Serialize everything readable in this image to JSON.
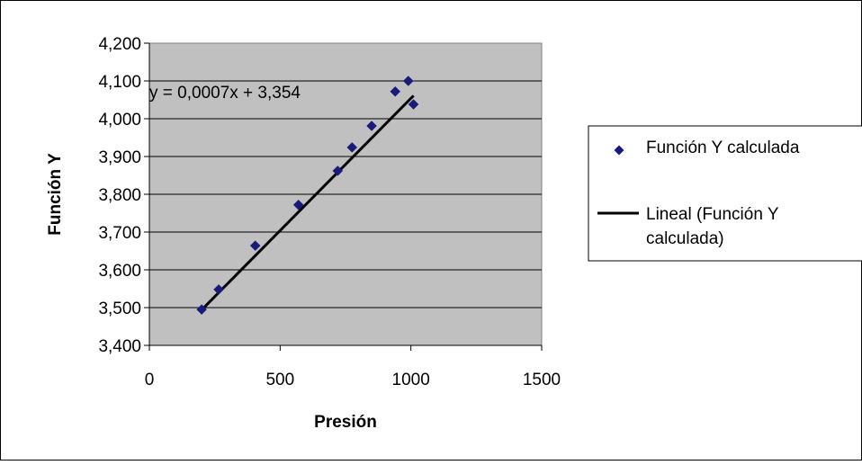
{
  "chart_data": {
    "type": "scatter",
    "xlabel": "Presión",
    "ylabel": "Función Y",
    "xlim": [
      0,
      1500
    ],
    "ylim": [
      3.4,
      4.2
    ],
    "x_ticks": [
      "0",
      "500",
      "1000",
      "1500"
    ],
    "y_ticks": [
      "3,400",
      "3,500",
      "3,600",
      "3,700",
      "3,800",
      "3,900",
      "4,000",
      "4,100",
      "4,200"
    ],
    "grid": "horizontal",
    "series": [
      {
        "name": "Función Y calculada",
        "color": "#1a1a7a",
        "marker": "diamond",
        "points": [
          {
            "x": 200,
            "y": 3.495
          },
          {
            "x": 265,
            "y": 3.548
          },
          {
            "x": 405,
            "y": 3.664
          },
          {
            "x": 570,
            "y": 3.772
          },
          {
            "x": 720,
            "y": 3.862
          },
          {
            "x": 775,
            "y": 3.924
          },
          {
            "x": 850,
            "y": 3.981
          },
          {
            "x": 940,
            "y": 4.072
          },
          {
            "x": 990,
            "y": 4.1
          },
          {
            "x": 1010,
            "y": 4.038
          }
        ]
      }
    ],
    "trendline": {
      "name": "Lineal (Función Y calculada)",
      "color": "#000000",
      "slope": 0.0007,
      "intercept": 3.354,
      "x_range": [
        200,
        1010
      ],
      "equation": "y = 0,0007x + 3,354"
    },
    "legend_position": "right",
    "plot_background": "#c0c0c0"
  }
}
